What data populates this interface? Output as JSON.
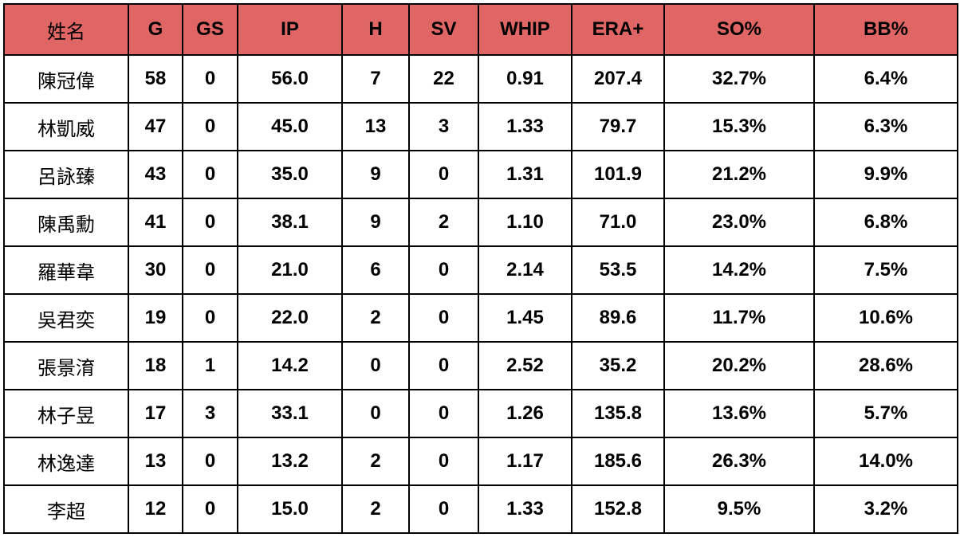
{
  "table": {
    "header": [
      "姓名",
      "G",
      "GS",
      "IP",
      "H",
      "SV",
      "WHIP",
      "ERA+",
      "SO%",
      "BB%"
    ],
    "rows": [
      [
        "陳冠偉",
        "58",
        "0",
        "56.0",
        "7",
        "22",
        "0.91",
        "207.4",
        "32.7%",
        "6.4%"
      ],
      [
        "林凱威",
        "47",
        "0",
        "45.0",
        "13",
        "3",
        "1.33",
        "79.7",
        "15.3%",
        "6.3%"
      ],
      [
        "呂詠臻",
        "43",
        "0",
        "35.0",
        "9",
        "0",
        "1.31",
        "101.9",
        "21.2%",
        "9.9%"
      ],
      [
        "陳禹勳",
        "41",
        "0",
        "38.1",
        "9",
        "2",
        "1.10",
        "71.0",
        "23.0%",
        "6.8%"
      ],
      [
        "羅華韋",
        "30",
        "0",
        "21.0",
        "6",
        "0",
        "2.14",
        "53.5",
        "14.2%",
        "7.5%"
      ],
      [
        "吳君奕",
        "19",
        "0",
        "22.0",
        "2",
        "0",
        "1.45",
        "89.6",
        "11.7%",
        "10.6%"
      ],
      [
        "張景淯",
        "18",
        "1",
        "14.2",
        "0",
        "0",
        "2.52",
        "35.2",
        "20.2%",
        "28.6%"
      ],
      [
        "林子昱",
        "17",
        "3",
        "33.1",
        "0",
        "0",
        "1.26",
        "135.8",
        "13.6%",
        "5.7%"
      ],
      [
        "林逸達",
        "13",
        "0",
        "13.2",
        "2",
        "0",
        "1.17",
        "185.6",
        "26.3%",
        "14.0%"
      ],
      [
        "李超",
        "12",
        "0",
        "15.0",
        "2",
        "0",
        "1.33",
        "152.8",
        "9.5%",
        "3.2%"
      ]
    ]
  }
}
